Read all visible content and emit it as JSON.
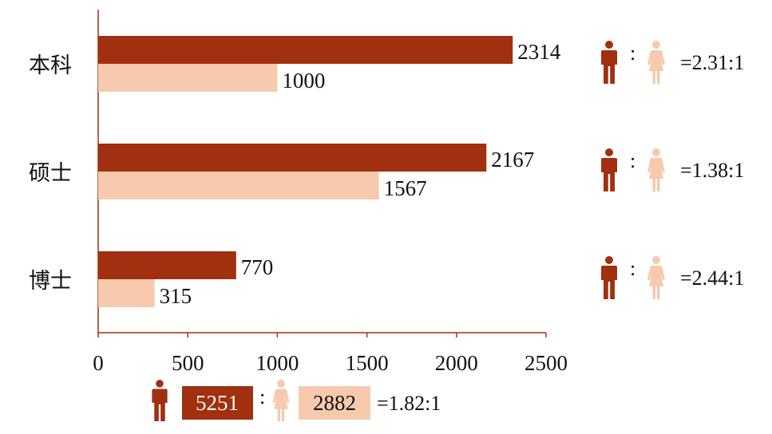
{
  "chart_data": {
    "type": "bar",
    "orientation": "horizontal",
    "categories": [
      "本科",
      "硕士",
      "博士"
    ],
    "series": [
      {
        "values": [
          2314,
          2167,
          770
        ]
      },
      {
        "values": [
          1000,
          1567,
          315
        ]
      }
    ],
    "xlim": [
      0,
      2500
    ],
    "xticks": [
      "0",
      "500",
      "1000",
      "1500",
      "2000",
      "2500"
    ],
    "colors": {
      "male": "#A0300F",
      "female": "#F7C9AD"
    },
    "ratios": [
      {
        "colon": ":",
        "text": "=2.31:1"
      },
      {
        "colon": ":",
        "text": "=1.38:1"
      },
      {
        "colon": ":",
        "text": "=2.44:1"
      }
    ],
    "totals": {
      "male": "5251",
      "female": "2882",
      "colon": ":",
      "ratio": "=1.82:1"
    },
    "icons": {
      "male": "male-person-icon",
      "female": "female-person-icon"
    }
  }
}
